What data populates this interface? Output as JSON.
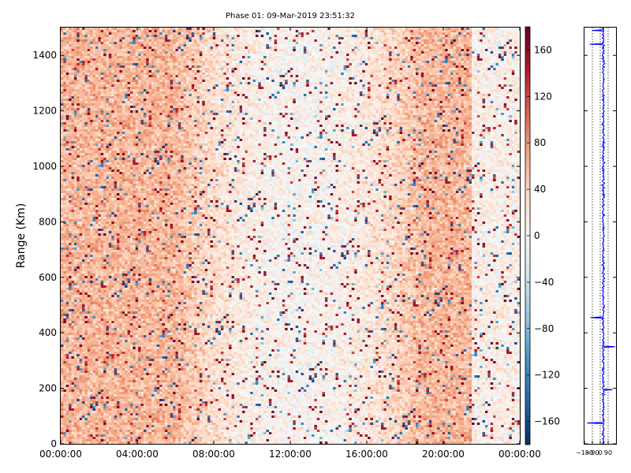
{
  "chart_data": [
    {
      "type": "heatmap",
      "title": "Phase 01: 09-Mar-2019 23:51:32",
      "xlabel": "",
      "ylabel": "Range (Km)",
      "x_tick_labels": [
        "00:00:00",
        "04:00:00",
        "08:00:00",
        "12:00:00",
        "16:00:00",
        "20:00:00",
        "00:00:00"
      ],
      "x_range_hours": [
        0,
        24
      ],
      "y_ticks": [
        0,
        200,
        400,
        600,
        800,
        1000,
        1200,
        1400
      ],
      "ylim": [
        0,
        1500
      ],
      "value_range": [
        -180,
        180
      ],
      "colorbar": {
        "ticks": [
          160,
          120,
          80,
          40,
          0,
          -40,
          -80,
          -120,
          -160
        ],
        "tick_labels": [
          "160",
          "120",
          "80",
          "40",
          "0",
          "−40",
          "−80",
          "−120",
          "−160"
        ],
        "colormap": "RdBu_r",
        "colors": [
          "#053061",
          "#2166ac",
          "#4393c3",
          "#92c5de",
          "#d1e5f0",
          "#f7f7f7",
          "#fddbc7",
          "#f4a582",
          "#d6604d",
          "#b2182b",
          "#67001f"
        ]
      },
      "pattern_note": "phase field: mostly positive (~40-80) at the start and end of the day, near zero with scattered blue values around 08:00-16:00; scattered dark red speckles throughout",
      "grid": false
    },
    {
      "type": "line",
      "title": "",
      "x_tick_labels": [
        "−180",
        "−90",
        "0",
        "90"
      ],
      "xlim": [
        -180,
        180
      ],
      "ylim": [
        0,
        1500
      ],
      "y_ticks": [
        0,
        200,
        400,
        600,
        800,
        1000,
        1200,
        1400
      ],
      "series_color": "#0000ff",
      "profile_mean": 35,
      "profile_spread": 22,
      "excursions": [
        {
          "range": 75,
          "value": -150
        },
        {
          "range": 195,
          "value": 140
        },
        {
          "range": 350,
          "value": 170
        },
        {
          "range": 455,
          "value": -110
        },
        {
          "range": 1440,
          "value": -120
        },
        {
          "range": 1490,
          "value": -90
        }
      ],
      "vertical_reference_lines": [
        -90,
        0,
        90
      ],
      "grid": true
    }
  ]
}
